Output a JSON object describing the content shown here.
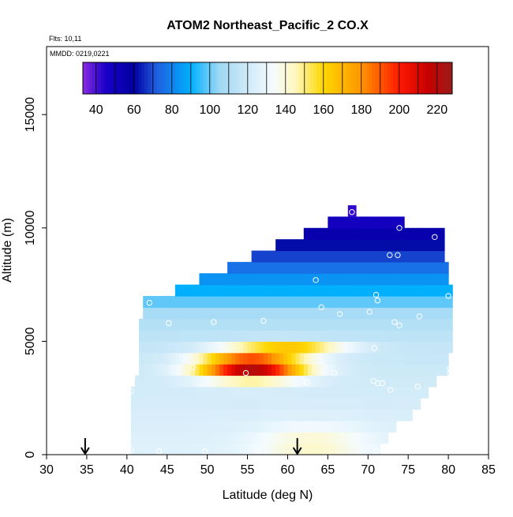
{
  "chart_data": {
    "type": "heatmap",
    "title": "ATOM2 Northeast_Pacific_2 CO.X",
    "flights_label": "Flts: 10,11",
    "mmdd_label": "MMDD: 0219,0221",
    "xlabel": "Latitude (deg N)",
    "ylabel": "Altitude (m)",
    "xlim": [
      30,
      85
    ],
    "ylim": [
      0,
      18000
    ],
    "x_ticks": [
      30,
      35,
      40,
      45,
      50,
      55,
      60,
      65,
      70,
      75,
      80,
      85
    ],
    "y_ticks": [
      0,
      5000,
      10000,
      15000
    ],
    "colorbar": {
      "min": 33,
      "max": 228,
      "ticks": [
        40,
        60,
        80,
        100,
        120,
        140,
        160,
        180,
        200,
        220
      ],
      "stops": [
        {
          "v": 33,
          "c": "#8a2be2"
        },
        {
          "v": 45,
          "c": "#1a00c8"
        },
        {
          "v": 60,
          "c": "#0000a0"
        },
        {
          "v": 72,
          "c": "#1f5fe0"
        },
        {
          "v": 90,
          "c": "#00b0ff"
        },
        {
          "v": 105,
          "c": "#9fd8f5"
        },
        {
          "v": 120,
          "c": "#cfeaf8"
        },
        {
          "v": 133,
          "c": "#f4fbff"
        },
        {
          "v": 145,
          "c": "#fff8c0"
        },
        {
          "v": 160,
          "c": "#ffd700"
        },
        {
          "v": 180,
          "c": "#ff9500"
        },
        {
          "v": 200,
          "c": "#ff1a00"
        },
        {
          "v": 215,
          "c": "#c80000"
        },
        {
          "v": 228,
          "c": "#9b1b1b"
        }
      ]
    },
    "arrows_lat": [
      34.8,
      61.2
    ],
    "observations": [
      {
        "lat": 40.5,
        "alt": 2800
      },
      {
        "lat": 42.8,
        "alt": 6700
      },
      {
        "lat": 45.2,
        "alt": 5800
      },
      {
        "lat": 50.8,
        "alt": 5850
      },
      {
        "lat": 57.0,
        "alt": 5900
      },
      {
        "lat": 63.5,
        "alt": 7700
      },
      {
        "lat": 64.2,
        "alt": 6500
      },
      {
        "lat": 66.5,
        "alt": 6200
      },
      {
        "lat": 70.2,
        "alt": 6300
      },
      {
        "lat": 71.2,
        "alt": 6800
      },
      {
        "lat": 71.0,
        "alt": 7050
      },
      {
        "lat": 73.3,
        "alt": 5850
      },
      {
        "lat": 73.9,
        "alt": 5700
      },
      {
        "lat": 76.4,
        "alt": 6100
      },
      {
        "lat": 80.0,
        "alt": 7000
      },
      {
        "lat": 72.7,
        "alt": 8800
      },
      {
        "lat": 73.7,
        "alt": 8800
      },
      {
        "lat": 78.3,
        "alt": 9600
      },
      {
        "lat": 73.9,
        "alt": 10000
      },
      {
        "lat": 68.0,
        "alt": 10700
      },
      {
        "lat": 70.8,
        "alt": 4700
      },
      {
        "lat": 65.8,
        "alt": 3600
      },
      {
        "lat": 62.0,
        "alt": 3250
      },
      {
        "lat": 62.4,
        "alt": 3200
      },
      {
        "lat": 70.7,
        "alt": 3250
      },
      {
        "lat": 71.2,
        "alt": 3150
      },
      {
        "lat": 71.8,
        "alt": 3150
      },
      {
        "lat": 72.8,
        "alt": 2850
      },
      {
        "lat": 76.2,
        "alt": 3000
      },
      {
        "lat": 80.2,
        "alt": 3800
      },
      {
        "lat": 80.2,
        "alt": 3600
      },
      {
        "lat": 54.8,
        "alt": 3600
      },
      {
        "lat": 48.2,
        "alt": 3850
      },
      {
        "lat": 40.5,
        "alt": 200
      },
      {
        "lat": 44.0,
        "alt": 150
      },
      {
        "lat": 49.7,
        "alt": 150
      },
      {
        "lat": 56.3,
        "alt": 150
      },
      {
        "lat": 61.0,
        "alt": 200
      },
      {
        "lat": 71.0,
        "alt": 150
      }
    ],
    "gridded_field": {
      "cell_lat_deg": 0.5,
      "cell_alt_m": 500,
      "extent": [
        {
          "alt": [
            0,
            500
          ],
          "lat": [
            40.5,
            71.5
          ]
        },
        {
          "alt": [
            500,
            1000
          ],
          "lat": [
            40.5,
            72.5
          ]
        },
        {
          "alt": [
            1000,
            1500
          ],
          "lat": [
            40.5,
            73.5
          ]
        },
        {
          "alt": [
            1500,
            2000
          ],
          "lat": [
            40.5,
            75.5
          ]
        },
        {
          "alt": [
            2000,
            2500
          ],
          "lat": [
            40.5,
            76.5
          ]
        },
        {
          "alt": [
            2500,
            3000
          ],
          "lat": [
            40.5,
            77.5
          ]
        },
        {
          "alt": [
            3000,
            3500
          ],
          "lat": [
            41.0,
            78.5
          ]
        },
        {
          "alt": [
            3500,
            4000
          ],
          "lat": [
            41.5,
            80.0
          ]
        },
        {
          "alt": [
            4000,
            4500
          ],
          "lat": [
            41.5,
            80.0
          ]
        },
        {
          "alt": [
            4500,
            5000
          ],
          "lat": [
            41.5,
            80.5
          ]
        },
        {
          "alt": [
            5000,
            5500
          ],
          "lat": [
            41.5,
            80.5
          ]
        },
        {
          "alt": [
            5500,
            6000
          ],
          "lat": [
            41.5,
            80.5
          ]
        },
        {
          "alt": [
            6000,
            6500
          ],
          "lat": [
            42.0,
            80.5
          ]
        },
        {
          "alt": [
            6500,
            7000
          ],
          "lat": [
            42.0,
            80.5
          ]
        },
        {
          "alt": [
            7000,
            7500
          ],
          "lat": [
            46.0,
            80.5
          ]
        },
        {
          "alt": [
            7500,
            8000
          ],
          "lat": [
            49.0,
            80.0
          ]
        },
        {
          "alt": [
            8000,
            8500
          ],
          "lat": [
            52.5,
            80.0
          ]
        },
        {
          "alt": [
            8500,
            9000
          ],
          "lat": [
            55.5,
            79.5
          ]
        },
        {
          "alt": [
            9000,
            9500
          ],
          "lat": [
            58.5,
            79.5
          ]
        },
        {
          "alt": [
            9500,
            10000
          ],
          "lat": [
            62.0,
            79.5
          ]
        },
        {
          "alt": [
            10000,
            10500
          ],
          "lat": [
            65.0,
            74.5
          ]
        },
        {
          "alt": [
            10500,
            11000
          ],
          "lat": [
            67.5,
            68.5
          ]
        }
      ],
      "base_profile": [
        {
          "alt": 0,
          "v": 126
        },
        {
          "alt": 2000,
          "v": 123
        },
        {
          "alt": 3000,
          "v": 121
        },
        {
          "alt": 5000,
          "v": 116
        },
        {
          "alt": 6000,
          "v": 110
        },
        {
          "alt": 6500,
          "v": 105
        },
        {
          "alt": 7000,
          "v": 93
        },
        {
          "alt": 7500,
          "v": 87
        },
        {
          "alt": 8000,
          "v": 80
        },
        {
          "alt": 8500,
          "v": 72
        },
        {
          "alt": 9000,
          "v": 65
        },
        {
          "alt": 9500,
          "v": 58
        },
        {
          "alt": 10000,
          "v": 52
        },
        {
          "alt": 10500,
          "v": 45
        },
        {
          "alt": 11000,
          "v": 40
        }
      ],
      "plume": {
        "lat": 55.5,
        "alt": 3900,
        "peak": 228,
        "lat_sigma": 6.5,
        "alt_sigma": 550,
        "tilt": -0.0018
      },
      "secondary_plume": {
        "lat": 60.0,
        "alt": 4700,
        "peak": 170,
        "lat_sigma": 7.0,
        "alt_sigma": 300
      },
      "surface_enhancement": {
        "lat": 63.0,
        "alt": 400,
        "peak": 143,
        "lat_sigma": 7.0,
        "alt_sigma": 900
      }
    }
  }
}
